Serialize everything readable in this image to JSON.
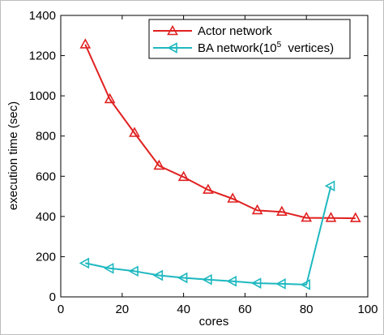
{
  "chart_data": {
    "type": "line",
    "title": "",
    "xlabel": "cores",
    "ylabel": "execution time (sec)",
    "xlim": [
      0,
      100
    ],
    "ylim": [
      0,
      1400
    ],
    "xticks": [
      0,
      20,
      40,
      60,
      80,
      100
    ],
    "yticks": [
      0,
      200,
      400,
      600,
      800,
      1000,
      1200,
      1400
    ],
    "grid": false,
    "legend_position": "top-right",
    "series": [
      {
        "name": "Actor network",
        "color": "#e02020",
        "marker": "triangle-up",
        "x": [
          8,
          16,
          24,
          32,
          40,
          48,
          56,
          64,
          72,
          80,
          88,
          96
        ],
        "y": [
          1255,
          983,
          815,
          652,
          596,
          532,
          488,
          430,
          423,
          393,
          392,
          391
        ]
      },
      {
        "name_prefix": "BA network(10",
        "name_sup": "5",
        "name_suffix": "  vertices)",
        "color": "#1fb8c0",
        "marker": "triangle-left",
        "x": [
          8,
          16,
          24,
          32,
          40,
          48,
          56,
          64,
          72,
          80,
          88
        ],
        "y": [
          168,
          142,
          128,
          107,
          95,
          86,
          78,
          68,
          65,
          61,
          552
        ]
      }
    ]
  }
}
